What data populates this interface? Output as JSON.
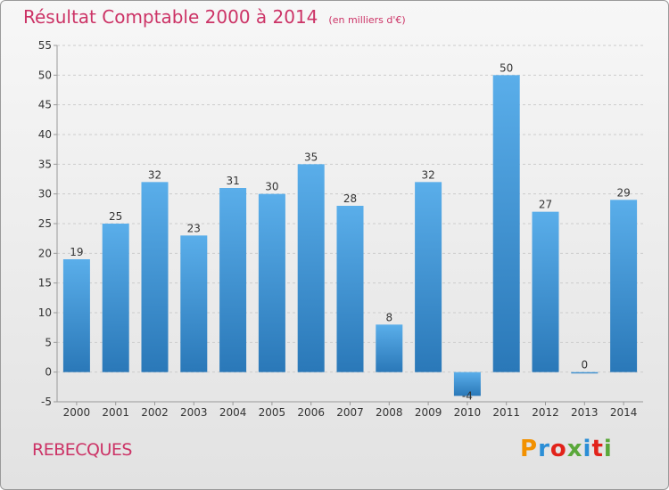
{
  "title": "Résultat Comptable 2000 à 2014",
  "subtitle": "(en milliers d'€)",
  "commune": "REBECQUES",
  "logo": {
    "text": "Proxiti"
  },
  "colors": {
    "title": "#cc3366",
    "bar_top": "#5aaeea",
    "bar_bottom": "#2a78b8",
    "grid": "#cccccc",
    "axis": "#999999"
  },
  "chart_data": {
    "type": "bar",
    "categories": [
      "2000",
      "2001",
      "2002",
      "2003",
      "2004",
      "2005",
      "2006",
      "2007",
      "2008",
      "2009",
      "2010",
      "2011",
      "2012",
      "2013",
      "2014"
    ],
    "values": [
      19,
      25,
      32,
      23,
      31,
      30,
      35,
      28,
      8,
      32,
      -4,
      50,
      27,
      0,
      29
    ],
    "data_labels": [
      "19",
      "25",
      "32",
      "23",
      "31",
      "30",
      "35",
      "28",
      "8",
      "32",
      "-4",
      "50",
      "27",
      "0",
      "29"
    ],
    "ylim": [
      -5,
      55
    ],
    "yticks": [
      -5,
      0,
      5,
      10,
      15,
      20,
      25,
      30,
      35,
      40,
      45,
      50,
      55
    ],
    "grid": "horizontal dashed",
    "legend": "none"
  }
}
